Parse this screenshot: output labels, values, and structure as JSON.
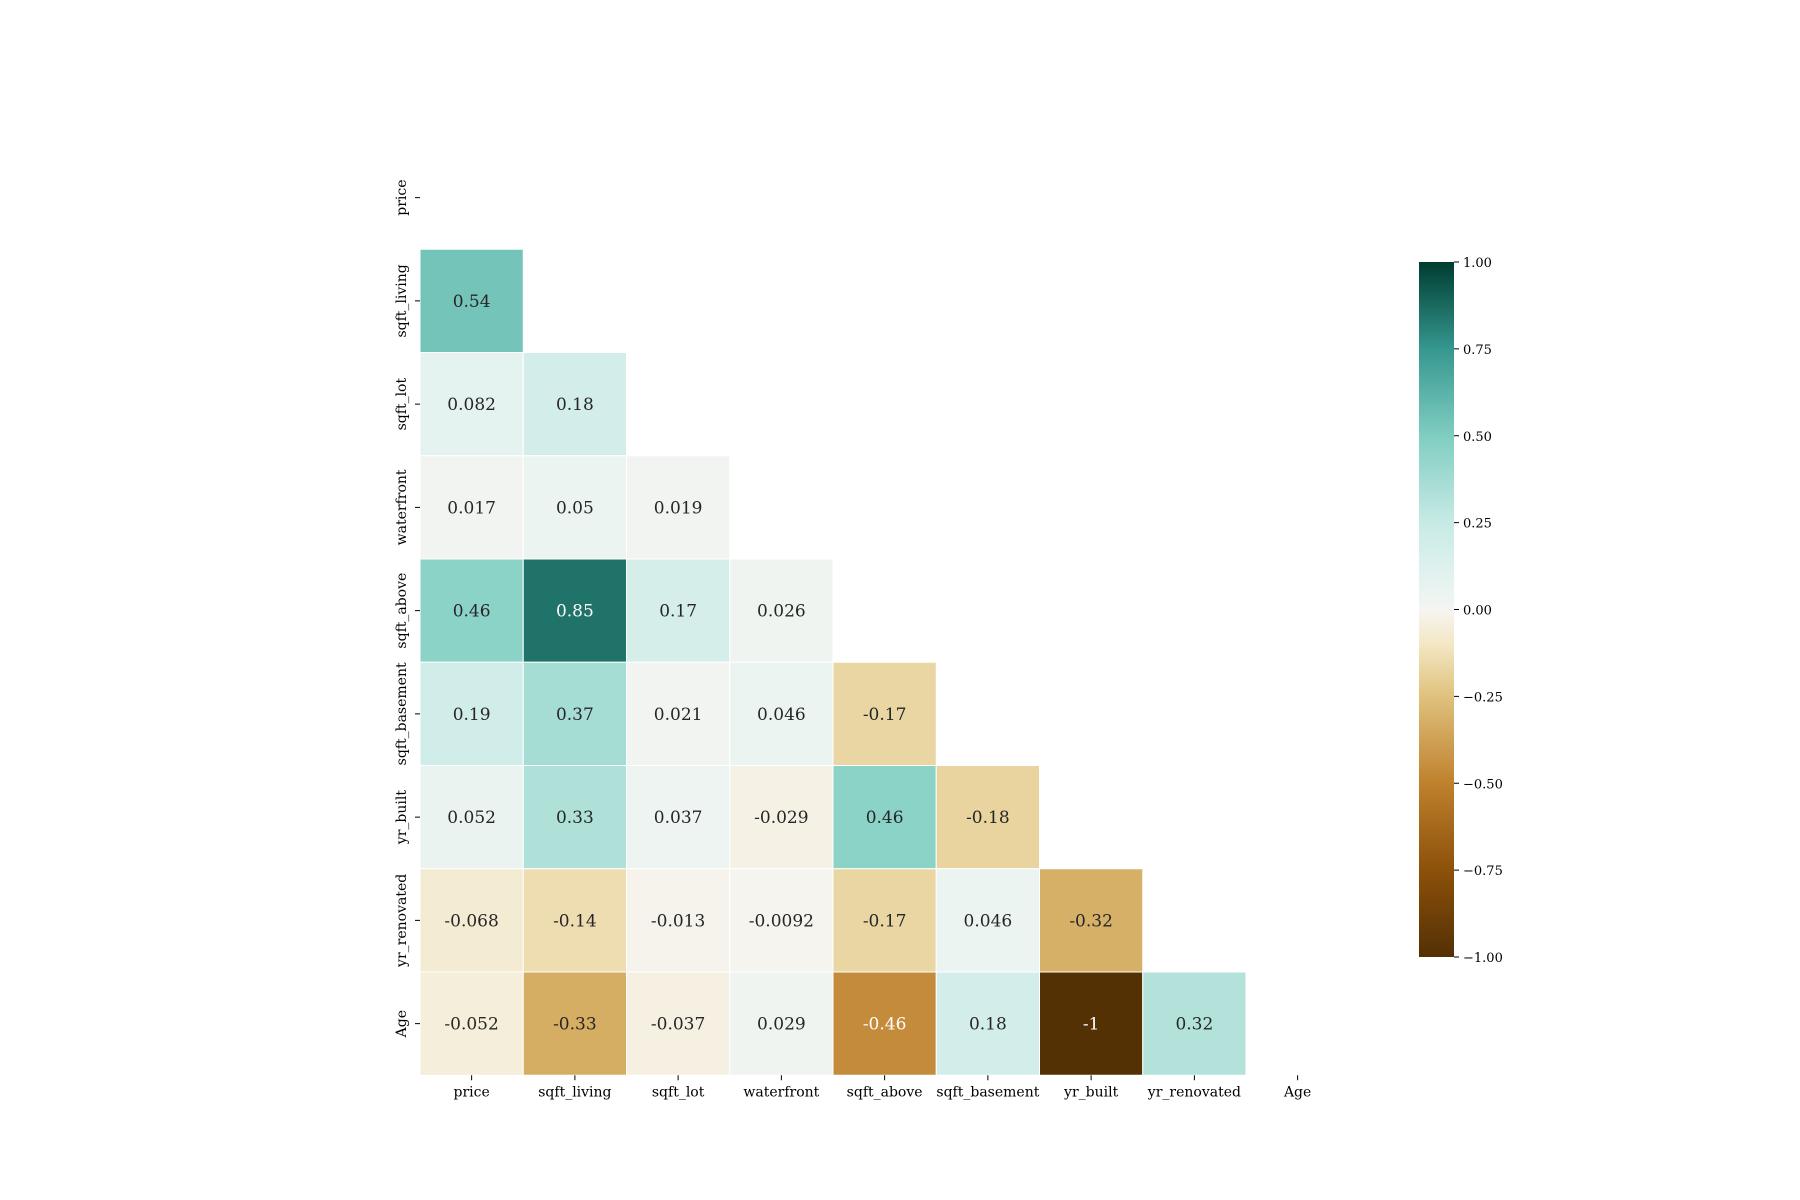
{
  "chart_data": {
    "type": "heatmap",
    "title": "",
    "xlabel": "",
    "ylabel": "",
    "mask": "upper-triangle-including-diagonal",
    "categories": [
      "price",
      "sqft_living",
      "sqft_lot",
      "waterfront",
      "sqft_above",
      "sqft_basement",
      "yr_built",
      "yr_renovated",
      "Age"
    ],
    "x_tick_labels": [
      "price",
      "sqft_living",
      "sqft_lot",
      "waterfront",
      "sqft_above",
      "sqft_basement",
      "yr_built",
      "yr_renovated",
      "Age"
    ],
    "y_tick_labels": [
      "price",
      "sqft_living",
      "sqft_lot",
      "waterfront",
      "sqft_above",
      "sqft_basement",
      "yr_built",
      "yr_renovated",
      "Age"
    ],
    "values": [
      [
        null,
        null,
        null,
        null,
        null,
        null,
        null,
        null,
        null
      ],
      [
        0.54,
        null,
        null,
        null,
        null,
        null,
        null,
        null,
        null
      ],
      [
        0.082,
        0.18,
        null,
        null,
        null,
        null,
        null,
        null,
        null
      ],
      [
        0.017,
        0.05,
        0.019,
        null,
        null,
        null,
        null,
        null,
        null
      ],
      [
        0.46,
        0.85,
        0.17,
        0.026,
        null,
        null,
        null,
        null,
        null
      ],
      [
        0.19,
        0.37,
        0.021,
        0.046,
        -0.17,
        null,
        null,
        null,
        null
      ],
      [
        0.052,
        0.33,
        0.037,
        -0.029,
        0.46,
        -0.18,
        null,
        null,
        null
      ],
      [
        -0.068,
        -0.14,
        -0.013,
        -0.0092,
        -0.17,
        0.046,
        -0.32,
        null,
        null
      ],
      [
        -0.052,
        -0.33,
        -0.037,
        0.029,
        -0.46,
        0.18,
        -1,
        0.32,
        null
      ]
    ],
    "annotations": [
      [
        null,
        null,
        null,
        null,
        null,
        null,
        null,
        null,
        null
      ],
      [
        "0.54",
        null,
        null,
        null,
        null,
        null,
        null,
        null,
        null
      ],
      [
        "0.082",
        "0.18",
        null,
        null,
        null,
        null,
        null,
        null,
        null
      ],
      [
        "0.017",
        "0.05",
        "0.019",
        null,
        null,
        null,
        null,
        null,
        null
      ],
      [
        "0.46",
        "0.85",
        "0.17",
        "0.026",
        null,
        null,
        null,
        null,
        null
      ],
      [
        "0.19",
        "0.37",
        "0.021",
        "0.046",
        "-0.17",
        null,
        null,
        null,
        null
      ],
      [
        "0.052",
        "0.33",
        "0.037",
        "-0.029",
        "0.46",
        "-0.18",
        null,
        null,
        null
      ],
      [
        "-0.068",
        "-0.14",
        "-0.013",
        "-0.0092",
        "-0.17",
        "0.046",
        "-0.32",
        null,
        null
      ],
      [
        "-0.052",
        "-0.33",
        "-0.037",
        "0.029",
        "-0.46",
        "0.18",
        "-1",
        "0.32",
        null
      ]
    ],
    "colormap": "BrBG",
    "vmin": -1,
    "vmax": 1,
    "colorbar": {
      "ticks": [
        1.0,
        0.75,
        0.5,
        0.25,
        0.0,
        -0.25,
        -0.5,
        -0.75,
        -1.0
      ],
      "tick_labels": [
        "1.00",
        "0.75",
        "0.50",
        "0.25",
        "0.00",
        "−0.25",
        "−0.50",
        "−0.75",
        "−1.00"
      ],
      "placement": "right"
    },
    "colormap_stops": [
      {
        "v": -1.0,
        "color": "#543005"
      },
      {
        "v": -0.75,
        "color": "#8c510a"
      },
      {
        "v": -0.5,
        "color": "#bf812d"
      },
      {
        "v": -0.25,
        "color": "#dfc27d"
      },
      {
        "v": -0.1,
        "color": "#f4e7c4"
      },
      {
        "v": 0.0,
        "color": "#f5f5f2"
      },
      {
        "v": 0.1,
        "color": "#e1f2ef"
      },
      {
        "v": 0.25,
        "color": "#c7eae5"
      },
      {
        "v": 0.5,
        "color": "#80cdc1"
      },
      {
        "v": 0.75,
        "color": "#35978f"
      },
      {
        "v": 1.0,
        "color": "#003c30"
      }
    ],
    "grid": false,
    "cell_border_color": "#ffffff"
  }
}
